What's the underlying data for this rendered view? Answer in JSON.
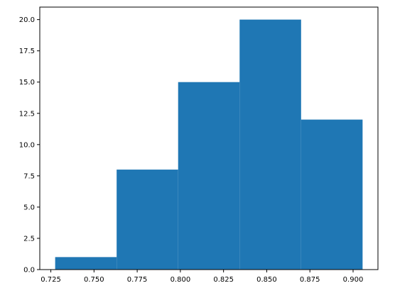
{
  "chart_data": {
    "type": "histogram",
    "title": "",
    "xlabel": "",
    "ylabel": "",
    "bins": [
      {
        "x0": 0.7275,
        "x1": 0.7631,
        "count": 1
      },
      {
        "x0": 0.7631,
        "x1": 0.7987,
        "count": 8
      },
      {
        "x0": 0.7987,
        "x1": 0.8343,
        "count": 15
      },
      {
        "x0": 0.8343,
        "x1": 0.8699,
        "count": 20
      },
      {
        "x0": 0.8699,
        "x1": 0.9055,
        "count": 12
      }
    ],
    "xlim": [
      0.7186,
      0.9144
    ],
    "ylim": [
      0,
      21
    ],
    "xticks": [
      0.725,
      0.75,
      0.775,
      0.8,
      0.825,
      0.85,
      0.875,
      0.9
    ],
    "xtick_labels": [
      "0.725",
      "0.750",
      "0.775",
      "0.800",
      "0.825",
      "0.850",
      "0.875",
      "0.900"
    ],
    "yticks": [
      0,
      2.5,
      5,
      7.5,
      10,
      12.5,
      15,
      17.5,
      20
    ],
    "ytick_labels": [
      "0.0",
      "2.5",
      "5.0",
      "7.5",
      "10.0",
      "12.5",
      "15.0",
      "17.5",
      "20.0"
    ],
    "grid": false,
    "bar_color": "#1f77b4"
  }
}
